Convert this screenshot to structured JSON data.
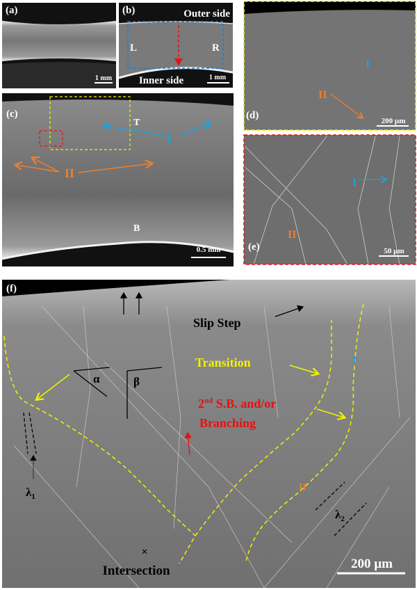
{
  "colors": {
    "blue": "#1aa3e0",
    "orange": "#ee7f2d",
    "yellow": "#f2f200",
    "red": "#e81010",
    "panel_gray": "#6e6e6e"
  },
  "panels": {
    "a": {
      "label": "(a)",
      "scale": "1 mm"
    },
    "b": {
      "label": "(b)",
      "top": "Outer side",
      "bottom": "Inner side",
      "left": "L",
      "right": "R",
      "scale": "1 mm"
    },
    "c": {
      "label": "(c)",
      "top_mark": "T",
      "bottom_mark": "B",
      "type1": "I",
      "type2": "II",
      "scale": "0.5 mm"
    },
    "d": {
      "label": "(d)",
      "type1": "I",
      "type2": "II",
      "scale": "200 µm"
    },
    "e": {
      "label": "(e)",
      "type1": "I",
      "type2": "II",
      "scale": "50 µm"
    },
    "f": {
      "label": "(f)",
      "slip_step": "Slip Step",
      "transition": "Transition",
      "sb_sup_num": "2",
      "sb_sup": "nd",
      "sb_rest": " S.B. and/or",
      "branching": "Branching",
      "alpha": "α",
      "beta": "β",
      "lambda": "λ",
      "lambda1_sub": "1",
      "lambda2_sub": "2",
      "type1": "I",
      "type2": "II",
      "cross": "×",
      "intersection": "Intersection",
      "scale": "200 µm"
    }
  }
}
